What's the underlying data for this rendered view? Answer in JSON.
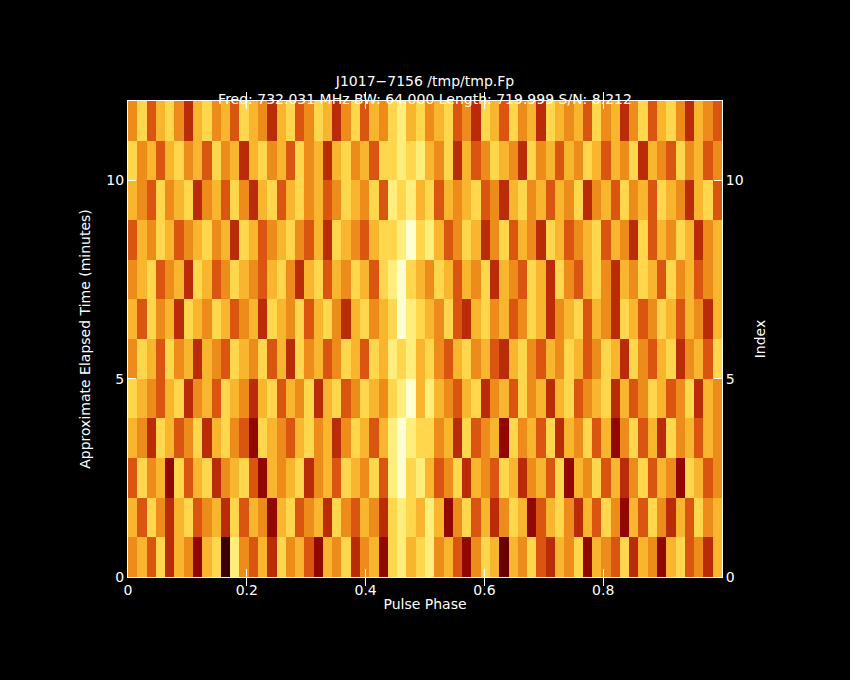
{
  "chart_data": {
    "type": "heatmap",
    "title": "J1017−7156 /tmp/tmp.Fp",
    "subtitle": "Freq: 732.031 MHz BW: 64.000 Length: 719.999 S/N: 8.212",
    "x_label": "Pulse Phase",
    "y_label": "Approximate Elapsed Time (minutes)",
    "y2_label": "Index",
    "xlim": [
      0,
      1
    ],
    "xticks": [
      0,
      0.2,
      0.4,
      0.6,
      0.8
    ],
    "ylim": [
      0,
      12
    ],
    "yticks": [
      0,
      5,
      10
    ],
    "y2lim": [
      0,
      12
    ],
    "y2ticks": [
      0,
      5,
      10
    ],
    "zlim": [
      0,
      9
    ],
    "x": [
      0,
      0.015625,
      0.03125,
      0.046875,
      0.0625,
      0.078125,
      0.09375,
      0.109375,
      0.125,
      0.140625,
      0.15625,
      0.171875,
      0.1875,
      0.203125,
      0.21875,
      0.234375,
      0.25,
      0.265625,
      0.28125,
      0.296875,
      0.3125,
      0.328125,
      0.34375,
      0.359375,
      0.375,
      0.390625,
      0.40625,
      0.421875,
      0.4375,
      0.453125,
      0.46875,
      0.484375,
      0.5,
      0.515625,
      0.53125,
      0.546875,
      0.5625,
      0.578125,
      0.59375,
      0.609375,
      0.625,
      0.640625,
      0.65625,
      0.671875,
      0.6875,
      0.703125,
      0.71875,
      0.734375,
      0.75,
      0.765625,
      0.78125,
      0.796875,
      0.8125,
      0.828125,
      0.84375,
      0.859375,
      0.875,
      0.890625,
      0.90625,
      0.921875,
      0.9375,
      0.953125,
      0.96875,
      0.984375,
      1
    ],
    "y": [
      0,
      1,
      2,
      3,
      4,
      5,
      6,
      7,
      8,
      9,
      10,
      11,
      12
    ],
    "cells": [
      [
        5,
        6,
        4,
        7,
        3,
        6,
        5,
        2,
        6,
        7,
        0,
        8,
        5,
        4,
        6,
        3,
        7,
        5,
        6,
        4,
        2,
        6,
        5,
        7,
        3,
        5,
        6,
        2,
        7,
        8,
        6,
        7,
        8,
        5,
        6,
        4,
        2,
        5,
        7,
        6,
        1,
        6,
        5,
        7,
        4,
        3,
        6,
        5,
        7,
        2,
        6,
        5,
        4,
        7,
        3,
        6,
        5,
        2,
        6,
        7,
        4,
        5,
        3,
        6
      ],
      [
        6,
        4,
        7,
        5,
        3,
        6,
        7,
        4,
        5,
        6,
        3,
        7,
        4,
        6,
        5,
        2,
        6,
        7,
        4,
        5,
        6,
        3,
        7,
        5,
        4,
        6,
        5,
        3,
        7,
        8,
        7,
        6,
        8,
        6,
        2,
        5,
        7,
        4,
        6,
        3,
        5,
        7,
        6,
        2,
        4,
        6,
        7,
        5,
        3,
        6,
        4,
        7,
        5,
        2,
        6,
        4,
        7,
        5,
        3,
        6,
        4,
        7,
        5,
        6
      ],
      [
        4,
        7,
        5,
        6,
        2,
        7,
        4,
        6,
        7,
        3,
        5,
        6,
        7,
        4,
        2,
        6,
        5,
        6,
        7,
        3,
        5,
        6,
        4,
        7,
        6,
        5,
        7,
        4,
        8,
        9,
        7,
        8,
        6,
        4,
        5,
        7,
        3,
        6,
        5,
        4,
        7,
        6,
        3,
        5,
        6,
        4,
        7,
        2,
        6,
        5,
        7,
        4,
        6,
        3,
        5,
        7,
        4,
        6,
        5,
        2,
        7,
        6,
        4,
        5
      ],
      [
        6,
        5,
        3,
        7,
        6,
        4,
        5,
        7,
        3,
        6,
        7,
        5,
        4,
        2,
        7,
        6,
        5,
        4,
        6,
        7,
        5,
        6,
        3,
        5,
        7,
        6,
        4,
        6,
        8,
        9,
        8,
        7,
        7,
        5,
        6,
        3,
        7,
        4,
        5,
        6,
        2,
        7,
        5,
        6,
        4,
        7,
        3,
        6,
        5,
        7,
        4,
        6,
        2,
        5,
        7,
        4,
        6,
        3,
        7,
        5,
        6,
        4,
        6,
        5
      ],
      [
        7,
        6,
        5,
        4,
        6,
        7,
        3,
        5,
        6,
        4,
        7,
        6,
        5,
        3,
        6,
        7,
        4,
        6,
        5,
        7,
        3,
        6,
        7,
        4,
        5,
        7,
        6,
        5,
        7,
        8,
        9,
        6,
        8,
        6,
        5,
        4,
        6,
        7,
        3,
        5,
        6,
        4,
        7,
        5,
        6,
        3,
        6,
        7,
        4,
        5,
        6,
        7,
        3,
        6,
        4,
        5,
        7,
        6,
        4,
        5,
        7,
        3,
        6,
        5
      ],
      [
        5,
        7,
        6,
        4,
        7,
        5,
        6,
        3,
        6,
        5,
        4,
        7,
        6,
        5,
        7,
        4,
        6,
        3,
        7,
        5,
        6,
        4,
        5,
        7,
        6,
        4,
        7,
        6,
        8,
        7,
        8,
        6,
        7,
        5,
        4,
        6,
        7,
        5,
        6,
        4,
        3,
        6,
        7,
        5,
        4,
        6,
        5,
        7,
        6,
        4,
        5,
        7,
        6,
        3,
        7,
        5,
        4,
        6,
        7,
        3,
        5,
        6,
        4,
        7
      ],
      [
        6,
        4,
        7,
        5,
        6,
        3,
        7,
        6,
        5,
        7,
        6,
        4,
        5,
        6,
        3,
        7,
        6,
        5,
        7,
        4,
        6,
        7,
        5,
        3,
        6,
        7,
        5,
        6,
        7,
        9,
        8,
        7,
        6,
        5,
        7,
        4,
        3,
        6,
        7,
        5,
        6,
        4,
        5,
        7,
        6,
        3,
        5,
        6,
        7,
        4,
        6,
        5,
        3,
        7,
        6,
        4,
        5,
        7,
        6,
        4,
        6,
        5,
        3,
        6
      ],
      [
        5,
        6,
        7,
        4,
        5,
        6,
        3,
        7,
        6,
        4,
        5,
        7,
        6,
        5,
        4,
        6,
        7,
        5,
        3,
        6,
        7,
        4,
        6,
        5,
        7,
        6,
        4,
        7,
        8,
        9,
        7,
        6,
        5,
        7,
        6,
        4,
        6,
        5,
        7,
        3,
        6,
        5,
        4,
        7,
        6,
        3,
        7,
        5,
        4,
        6,
        7,
        5,
        3,
        6,
        5,
        7,
        6,
        4,
        7,
        5,
        6,
        4,
        5,
        6
      ],
      [
        4,
        6,
        5,
        7,
        6,
        4,
        5,
        6,
        7,
        5,
        6,
        3,
        7,
        6,
        4,
        5,
        6,
        7,
        5,
        4,
        6,
        3,
        7,
        6,
        5,
        4,
        6,
        7,
        7,
        8,
        9,
        7,
        8,
        6,
        4,
        5,
        7,
        6,
        3,
        5,
        7,
        4,
        6,
        5,
        3,
        7,
        6,
        4,
        5,
        6,
        7,
        4,
        6,
        5,
        3,
        7,
        4,
        6,
        5,
        7,
        6,
        3,
        5,
        6
      ],
      [
        6,
        5,
        4,
        7,
        5,
        6,
        7,
        3,
        5,
        6,
        4,
        7,
        5,
        3,
        6,
        7,
        4,
        6,
        7,
        5,
        6,
        4,
        5,
        7,
        6,
        5,
        7,
        4,
        8,
        7,
        8,
        6,
        7,
        4,
        6,
        5,
        6,
        7,
        4,
        5,
        3,
        6,
        7,
        5,
        6,
        4,
        6,
        5,
        7,
        3,
        5,
        6,
        4,
        7,
        5,
        6,
        4,
        7,
        6,
        5,
        3,
        6,
        7,
        4
      ],
      [
        7,
        5,
        6,
        4,
        6,
        7,
        5,
        6,
        4,
        7,
        5,
        6,
        3,
        6,
        7,
        5,
        6,
        4,
        7,
        5,
        6,
        3,
        6,
        7,
        5,
        6,
        4,
        7,
        7,
        8,
        7,
        8,
        6,
        5,
        7,
        3,
        6,
        4,
        5,
        7,
        6,
        5,
        3,
        7,
        5,
        6,
        4,
        6,
        5,
        7,
        6,
        4,
        6,
        5,
        7,
        3,
        6,
        5,
        4,
        7,
        5,
        6,
        4,
        5
      ],
      [
        5,
        7,
        4,
        6,
        7,
        5,
        3,
        6,
        7,
        5,
        6,
        4,
        7,
        6,
        5,
        3,
        6,
        7,
        4,
        5,
        7,
        6,
        3,
        5,
        7,
        4,
        6,
        5,
        7,
        8,
        6,
        7,
        5,
        6,
        7,
        4,
        5,
        3,
        7,
        6,
        4,
        7,
        5,
        6,
        3,
        7,
        6,
        5,
        6,
        4,
        7,
        5,
        6,
        3,
        5,
        7,
        4,
        6,
        7,
        5,
        3,
        6,
        5,
        4
      ]
    ]
  }
}
